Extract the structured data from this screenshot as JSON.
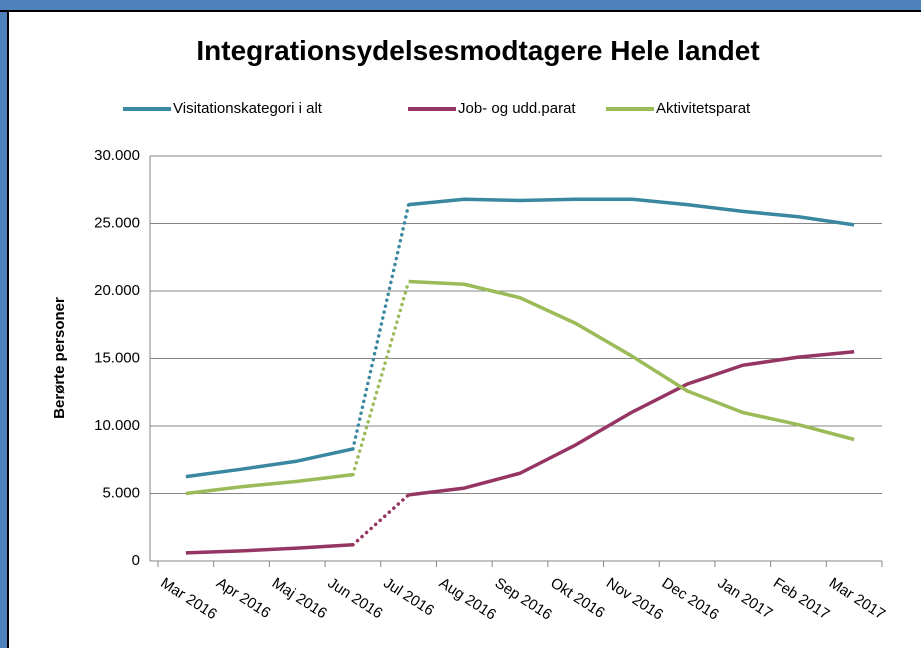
{
  "chart_data": {
    "type": "line",
    "title": "Integrationsydelsesmodtagere Hele landet",
    "y_label": "Berørte personer",
    "categories": [
      "Mar 2016",
      "Apr 2016",
      "Maj 2016",
      "Jun 2016",
      "Jul 2016",
      "Aug 2016",
      "Sep 2016",
      "Okt 2016",
      "Nov 2016",
      "Dec 2016",
      "Jan 2017",
      "Feb 2017",
      "Mar 2017"
    ],
    "series": [
      {
        "name": "Visitationskategori i alt",
        "color": "#3a87a0",
        "values": [
          6250,
          6800,
          7400,
          8300,
          26400,
          26800,
          26700,
          26800,
          26800,
          26400,
          25900,
          25500,
          24900
        ]
      },
      {
        "name": "Job- og udd.parat",
        "color": "#953563",
        "values": [
          600,
          750,
          950,
          1200,
          4900,
          5400,
          6500,
          8600,
          11000,
          13100,
          14500,
          15100,
          15500
        ]
      },
      {
        "name": "Aktivitetsparat",
        "color": "#9bbb59",
        "values": [
          5000,
          5500,
          5900,
          6400,
          20700,
          20500,
          19500,
          17600,
          15200,
          12600,
          11000,
          10100,
          9000
        ]
      }
    ],
    "dotted_segment": [
      3,
      4
    ],
    "ylim": [
      0,
      30000
    ],
    "yticks": [
      0,
      {
        "value": 5000,
        "label": "5.000"
      },
      {
        "value": 10000,
        "label": "10.000"
      },
      {
        "value": 15000,
        "label": "15.000"
      },
      {
        "value": 20000,
        "label": "20.000"
      },
      {
        "value": 25000,
        "label": "25.000"
      },
      {
        "value": 30000,
        "label": "30.000"
      }
    ],
    "grid": true,
    "legend": "top"
  }
}
